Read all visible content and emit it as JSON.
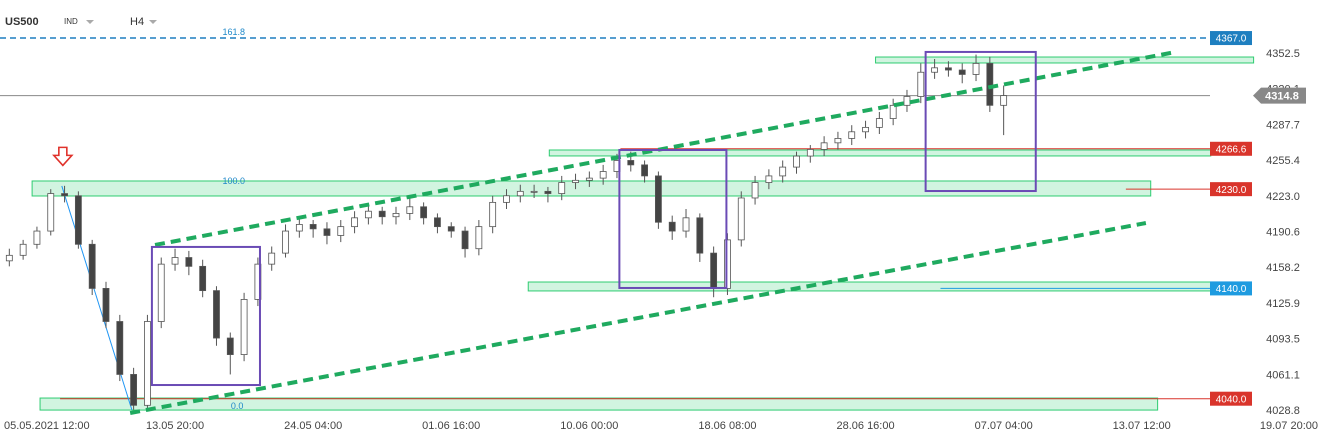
{
  "header": {
    "symbol": "US500",
    "kind": "IND",
    "interval": "H4"
  },
  "chart_data": {
    "type": "candlestick",
    "xlim": [
      -10.7,
      371.6
    ],
    "ylim": [
      4022.5,
      4401.5
    ],
    "xticks": [
      {
        "value": 0,
        "label": "05.05.2021 12:00"
      },
      {
        "value": 40,
        "label": "13.05 20:00"
      },
      {
        "value": 80,
        "label": "24.05 04:00"
      },
      {
        "value": 120,
        "label": "01.06 16:00"
      },
      {
        "value": 160,
        "label": "10.06 00:00"
      },
      {
        "value": 200,
        "label": "18.06 08:00"
      },
      {
        "value": 240,
        "label": "28.06 16:00"
      },
      {
        "value": 280,
        "label": "07.07 04:00"
      },
      {
        "value": 320,
        "label": "13.07 12:00"
      },
      {
        "value": 360,
        "label": "19.07 20:00"
      }
    ],
    "yticks": [
      4352.5,
      4320.1,
      4287.7,
      4255.4,
      {
        "value": 4223,
        "label": "4223.0"
      },
      4190.6,
      4158.2,
      4125.9,
      4093.5,
      4061.1,
      4028.8
    ],
    "up_color": "#ffffff",
    "down_color": "#444444",
    "wick_color": "#555555",
    "x": [
      -8,
      -4,
      0,
      4,
      8,
      12,
      16,
      20,
      24,
      28,
      32,
      36,
      40,
      44,
      48,
      52,
      56,
      60,
      64,
      68,
      72,
      76,
      80,
      84,
      88,
      92,
      96,
      100,
      104,
      108,
      112,
      116,
      120,
      124,
      128,
      132,
      136,
      140,
      144,
      148,
      152,
      156,
      160,
      164,
      168,
      172,
      176,
      180,
      184,
      188,
      192,
      196,
      200,
      204,
      208,
      212,
      216,
      220,
      224,
      228,
      232,
      236,
      240,
      244,
      248,
      252,
      256,
      260,
      264,
      268,
      272,
      276,
      280
    ],
    "ohlc": [
      [
        4165,
        4176,
        4160,
        4170
      ],
      [
        4170,
        4184,
        4166,
        4180
      ],
      [
        4180,
        4196,
        4176,
        4192
      ],
      [
        4192,
        4230,
        4188,
        4226
      ],
      [
        4226,
        4233,
        4218,
        4224
      ],
      [
        4224,
        4228,
        4176,
        4180
      ],
      [
        4180,
        4184,
        4134,
        4140
      ],
      [
        4140,
        4146,
        4104,
        4110
      ],
      [
        4110,
        4116,
        4056,
        4062
      ],
      [
        4062,
        4068,
        4030,
        4034
      ],
      [
        4034,
        4116,
        4030,
        4110
      ],
      [
        4110,
        4168,
        4104,
        4162
      ],
      [
        4162,
        4176,
        4156,
        4168
      ],
      [
        4168,
        4174,
        4152,
        4160
      ],
      [
        4160,
        4166,
        4132,
        4138
      ],
      [
        4138,
        4142,
        4088,
        4095
      ],
      [
        4095,
        4100,
        4062,
        4080
      ],
      [
        4080,
        4136,
        4074,
        4130
      ],
      [
        4130,
        4168,
        4124,
        4162
      ],
      [
        4162,
        4178,
        4156,
        4172
      ],
      [
        4172,
        4198,
        4168,
        4192
      ],
      [
        4192,
        4204,
        4186,
        4198
      ],
      [
        4198,
        4202,
        4186,
        4194
      ],
      [
        4194,
        4200,
        4180,
        4188
      ],
      [
        4188,
        4202,
        4182,
        4196
      ],
      [
        4196,
        4210,
        4190,
        4204
      ],
      [
        4204,
        4216,
        4198,
        4210
      ],
      [
        4210,
        4214,
        4198,
        4205
      ],
      [
        4205,
        4214,
        4198,
        4208
      ],
      [
        4208,
        4222,
        4202,
        4214
      ],
      [
        4214,
        4218,
        4198,
        4204
      ],
      [
        4204,
        4208,
        4190,
        4196
      ],
      [
        4196,
        4200,
        4186,
        4192
      ],
      [
        4192,
        4196,
        4168,
        4176
      ],
      [
        4176,
        4202,
        4170,
        4196
      ],
      [
        4196,
        4224,
        4190,
        4218
      ],
      [
        4218,
        4230,
        4212,
        4224
      ],
      [
        4224,
        4234,
        4218,
        4228
      ],
      [
        4228,
        4234,
        4222,
        4228
      ],
      [
        4228,
        4232,
        4218,
        4226
      ],
      [
        4226,
        4242,
        4220,
        4236
      ],
      [
        4236,
        4244,
        4230,
        4238
      ],
      [
        4238,
        4246,
        4232,
        4240
      ],
      [
        4240,
        4252,
        4234,
        4246
      ],
      [
        4246,
        4262,
        4240,
        4256
      ],
      [
        4256,
        4264,
        4246,
        4252
      ],
      [
        4252,
        4256,
        4236,
        4242
      ],
      [
        4242,
        4246,
        4194,
        4200
      ],
      [
        4200,
        4206,
        4184,
        4192
      ],
      [
        4192,
        4212,
        4186,
        4204
      ],
      [
        4204,
        4208,
        4164,
        4172
      ],
      [
        4172,
        4178,
        4132,
        4140
      ],
      [
        4140,
        4190,
        4134,
        4184
      ],
      [
        4184,
        4228,
        4178,
        4222
      ],
      [
        4222,
        4242,
        4216,
        4236
      ],
      [
        4236,
        4248,
        4230,
        4242
      ],
      [
        4242,
        4256,
        4236,
        4250
      ],
      [
        4250,
        4264,
        4244,
        4260
      ],
      [
        4260,
        4270,
        4254,
        4266
      ],
      [
        4266,
        4278,
        4260,
        4272
      ],
      [
        4272,
        4282,
        4266,
        4276
      ],
      [
        4276,
        4288,
        4270,
        4282
      ],
      [
        4282,
        4292,
        4276,
        4286
      ],
      [
        4286,
        4300,
        4280,
        4294
      ],
      [
        4294,
        4312,
        4288,
        4306
      ],
      [
        4306,
        4320,
        4300,
        4314
      ],
      [
        4314,
        4344,
        4308,
        4336
      ],
      [
        4336,
        4348,
        4330,
        4340
      ],
      [
        4340,
        4346,
        4332,
        4338
      ],
      [
        4338,
        4344,
        4326,
        4334
      ],
      [
        4334,
        4352,
        4328,
        4344
      ],
      [
        4344,
        4350,
        4300,
        4306
      ],
      [
        4306,
        4324,
        4279,
        4314.8
      ]
    ],
    "zones": [
      {
        "from": 4344.4,
        "to": 4349.8,
        "x0": 242.9,
        "x1": 352.4
      },
      {
        "from": 4260.1,
        "to": 4265.5,
        "x0": 148.4,
        "x1": 340
      },
      {
        "from": 4223.8,
        "to": 4237.4,
        "x0": -1.4,
        "x1": 322.6
      },
      {
        "from": 4137.7,
        "to": 4145.8,
        "x0": 142.3,
        "x1": 340
      },
      {
        "from": 4029.7,
        "to": 4040.6,
        "x0": 0.9,
        "x1": 324.6
      }
    ],
    "zone_color": "#2ecc71",
    "trendlines": [
      {
        "x": [
          34.2,
          329.9
        ],
        "y": [
          4179.4,
          4354.4
        ],
        "color": "#1faa5f"
      },
      {
        "x": [
          27,
          321.2
        ],
        "y": [
          4027,
          4199.3
        ],
        "color": "#1faa5f"
      }
    ],
    "boxes": [
      {
        "x0": 33.3,
        "x1": 64.6,
        "top": 4177.6,
        "bottom": 4052.4
      },
      {
        "x0": 168.7,
        "x1": 199.7,
        "top": 4265.5,
        "bottom": 4140.4
      },
      {
        "x0": 257.4,
        "x1": 289.3,
        "top": 4354.4,
        "bottom": 4228.3
      }
    ],
    "box_color": "#6a4bb5",
    "fib_line": {
      "x": [
        7.2,
        27.5
      ],
      "y": [
        4232.9,
        4029.8
      ],
      "color": "#2196f3"
    },
    "fib_labels": [
      {
        "text": "161.8",
        "x": 57,
        "y": 4372
      },
      {
        "text": "100.0",
        "x": 57,
        "y": 4237
      },
      {
        "text": "0.0",
        "x": 58,
        "y": 4033
      }
    ],
    "levels": [
      {
        "value": 4367,
        "label": "4367.0",
        "color": "#1e7fc0",
        "from": -10.7,
        "dashed": true
      },
      {
        "value": 4314.8,
        "label": "4314.8",
        "color": "#888888",
        "from": -10.7,
        "current": true
      },
      {
        "value": 4266.6,
        "label": "4266.6",
        "color": "#d9342b",
        "from": 169
      },
      {
        "value": 4230,
        "label": "4230.0",
        "color": "#d9342b",
        "from": 315.4
      },
      {
        "value": 4140,
        "label": "4140.0",
        "color": "#1e9be0",
        "from": 261.7
      },
      {
        "value": 4040,
        "label": "4040.0",
        "color": "#d9342b",
        "from": 6.7
      }
    ],
    "marker": {
      "x": 7.5,
      "y": 4257,
      "color": "#e0322b"
    }
  }
}
